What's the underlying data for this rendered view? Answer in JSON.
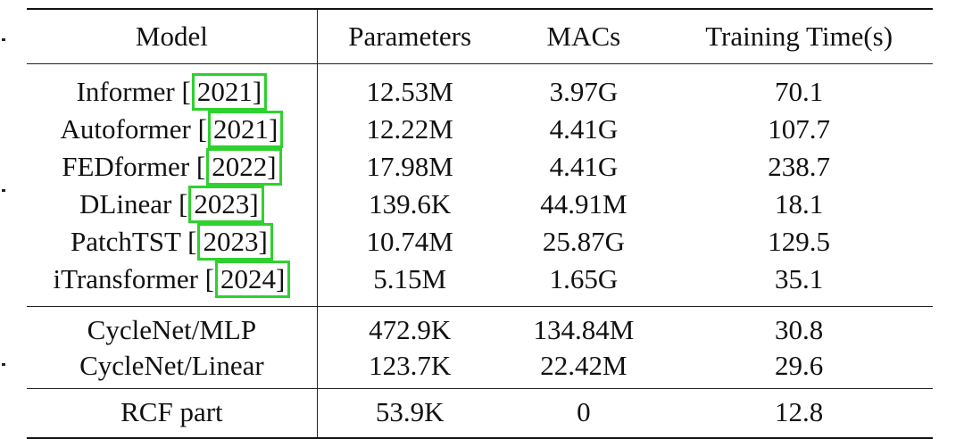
{
  "table": {
    "headers": {
      "model": "Model",
      "parameters": "Parameters",
      "macs": "MACs",
      "training_time": "Training Time(s)"
    },
    "baselines": [
      {
        "model": "Informer",
        "year": "2021",
        "closing": "]",
        "parameters": "12.53M",
        "macs": "3.97G",
        "training_time": "70.1"
      },
      {
        "model": "Autoformer",
        "year": "2021",
        "closing": "]",
        "parameters": "12.22M",
        "macs": "4.41G",
        "training_time": "107.7"
      },
      {
        "model": "FEDformer",
        "year": "2022",
        "closing": "]",
        "parameters": "17.98M",
        "macs": "4.41G",
        "training_time": "238.7"
      },
      {
        "model": "DLinear",
        "year": "2023",
        "closing": "]",
        "parameters": "139.6K",
        "macs": "44.91M",
        "training_time": "18.1"
      },
      {
        "model": "PatchTST",
        "year": "2023",
        "closing": "]",
        "parameters": "10.74M",
        "macs": "25.87G",
        "training_time": "129.5"
      },
      {
        "model": "iTransformer",
        "year": "2024",
        "closing": "]",
        "parameters": "5.15M",
        "macs": "1.65G",
        "training_time": "35.1"
      }
    ],
    "cyclenet": [
      {
        "model": "CycleNet/MLP",
        "parameters": "472.9K",
        "macs": "134.84M",
        "training_time": "30.8"
      },
      {
        "model": "CycleNet/Linear",
        "parameters": "123.7K",
        "macs": "22.42M",
        "training_time": "29.6"
      }
    ],
    "rcf": [
      {
        "model": "RCF part",
        "parameters": "53.9K",
        "macs": "0",
        "training_time": "12.8"
      }
    ]
  },
  "colors": {
    "citation_highlight": "#2fd12f",
    "rule": "#111111",
    "text": "#111111"
  }
}
